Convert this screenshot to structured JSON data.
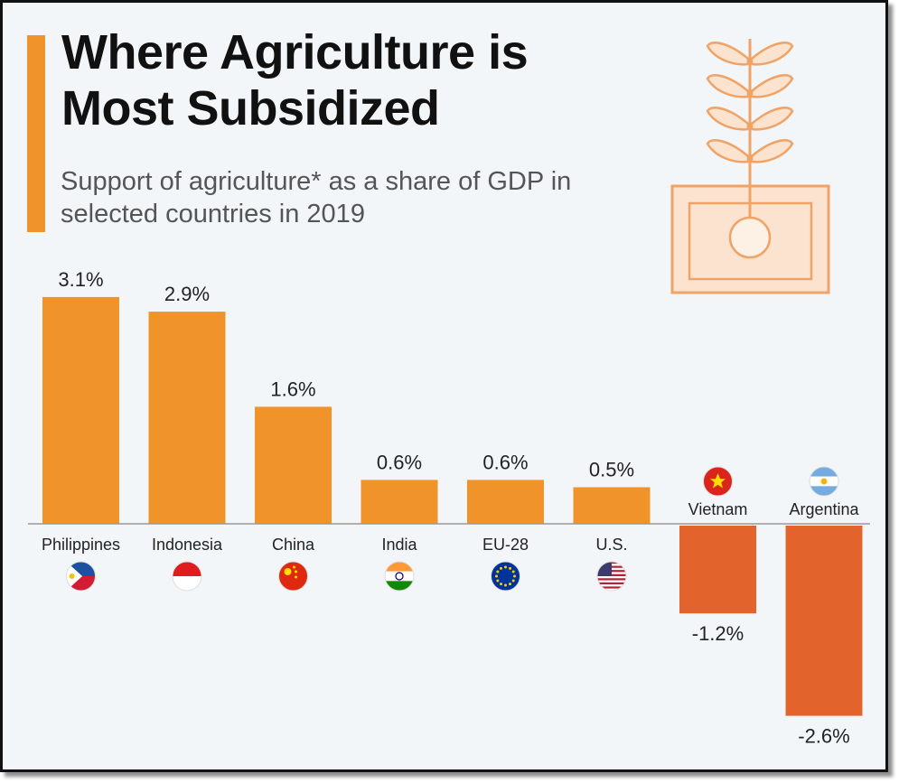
{
  "header": {
    "title": "Where Agriculture is Most Subsidized",
    "subtitle": "Support of agriculture* as a share of GDP in selected countries in 2019"
  },
  "icon": {
    "name": "wheat-banknote-icon"
  },
  "colors": {
    "positive": "#f0932b",
    "negative": "#e2632b",
    "accent": "#f0932b"
  },
  "chart_data": {
    "type": "bar",
    "categories": [
      "Philippines",
      "Indonesia",
      "China",
      "India",
      "EU-28",
      "U.S.",
      "Vietnam",
      "Argentina"
    ],
    "values": [
      3.1,
      2.9,
      1.6,
      0.6,
      0.6,
      0.5,
      -1.2,
      -2.6
    ],
    "value_labels": [
      "3.1%",
      "2.9%",
      "1.6%",
      "0.6%",
      "0.6%",
      "0.5%",
      "-1.2%",
      "-2.6%"
    ],
    "flags": [
      "philippines-flag-icon",
      "indonesia-flag-icon",
      "china-flag-icon",
      "india-flag-icon",
      "eu-flag-icon",
      "us-flag-icon",
      "vietnam-flag-icon",
      "argentina-flag-icon"
    ],
    "unit": "%",
    "ylim": [
      -2.6,
      3.1
    ],
    "grid": false,
    "legend": "none"
  }
}
